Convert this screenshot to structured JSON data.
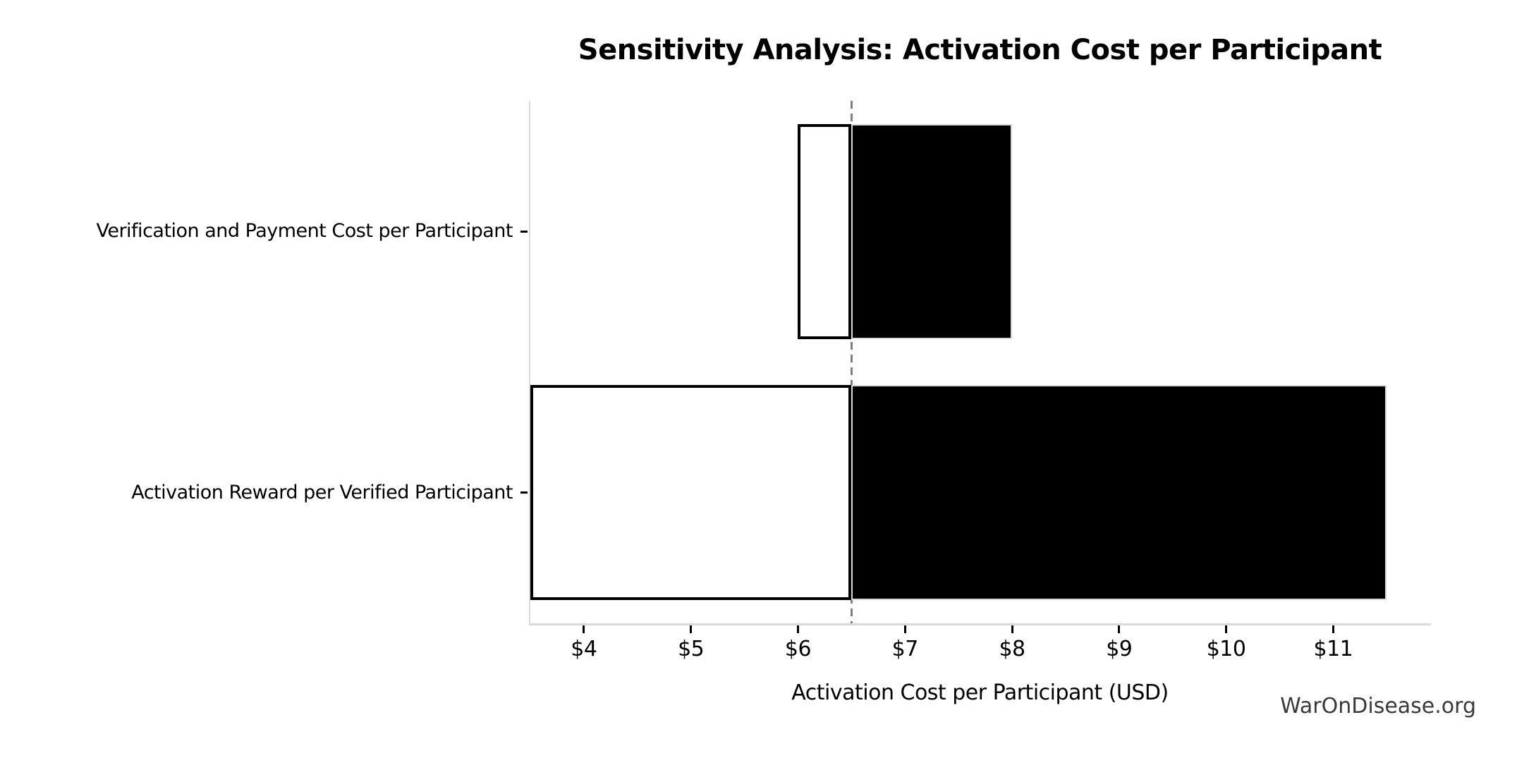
{
  "chart_data": {
    "type": "bar",
    "orientation": "horizontal",
    "title": "Sensitivity Analysis: Activation Cost per Participant",
    "xlabel": "Activation Cost per Participant (USD)",
    "ylabel": "",
    "categories": [
      "Verification and Payment Cost per Participant",
      "Activation Reward per Verified Participant"
    ],
    "baseline": 6.5,
    "series": [
      {
        "name": "low-segment",
        "fill": "#ffffff",
        "edge": "#000000",
        "values": [
          6.0,
          3.5
        ]
      },
      {
        "name": "high-segment",
        "fill": "#000000",
        "edge": "#d9d9d9",
        "values": [
          8.0,
          11.5
        ]
      }
    ],
    "bar_ranges_usd": [
      [
        6.0,
        8.0
      ],
      [
        3.5,
        11.5
      ]
    ],
    "xlim": [
      3.5,
      11.9
    ],
    "xticks": {
      "values": [
        4,
        5,
        6,
        7,
        8,
        9,
        10,
        11
      ],
      "labels": [
        "$4",
        "$5",
        "$6",
        "$7",
        "$8",
        "$9",
        "$10",
        "$11"
      ]
    },
    "grid": false,
    "legend": false,
    "baseline_style": "vertical-dashed"
  },
  "footer": {
    "watermark": "WarOnDisease.org"
  },
  "colors": {
    "background": "#ffffff",
    "bar_fill_high": "#000000",
    "bar_fill_low": "#ffffff",
    "bar_edge_low": "#000000",
    "bar_edge_high": "#d9d9d9",
    "baseline_line": "#7f7f7f",
    "spine": "#d9d9d9",
    "tick": "#000000",
    "text": "#000000",
    "watermark_text": "#3a3a3a"
  }
}
